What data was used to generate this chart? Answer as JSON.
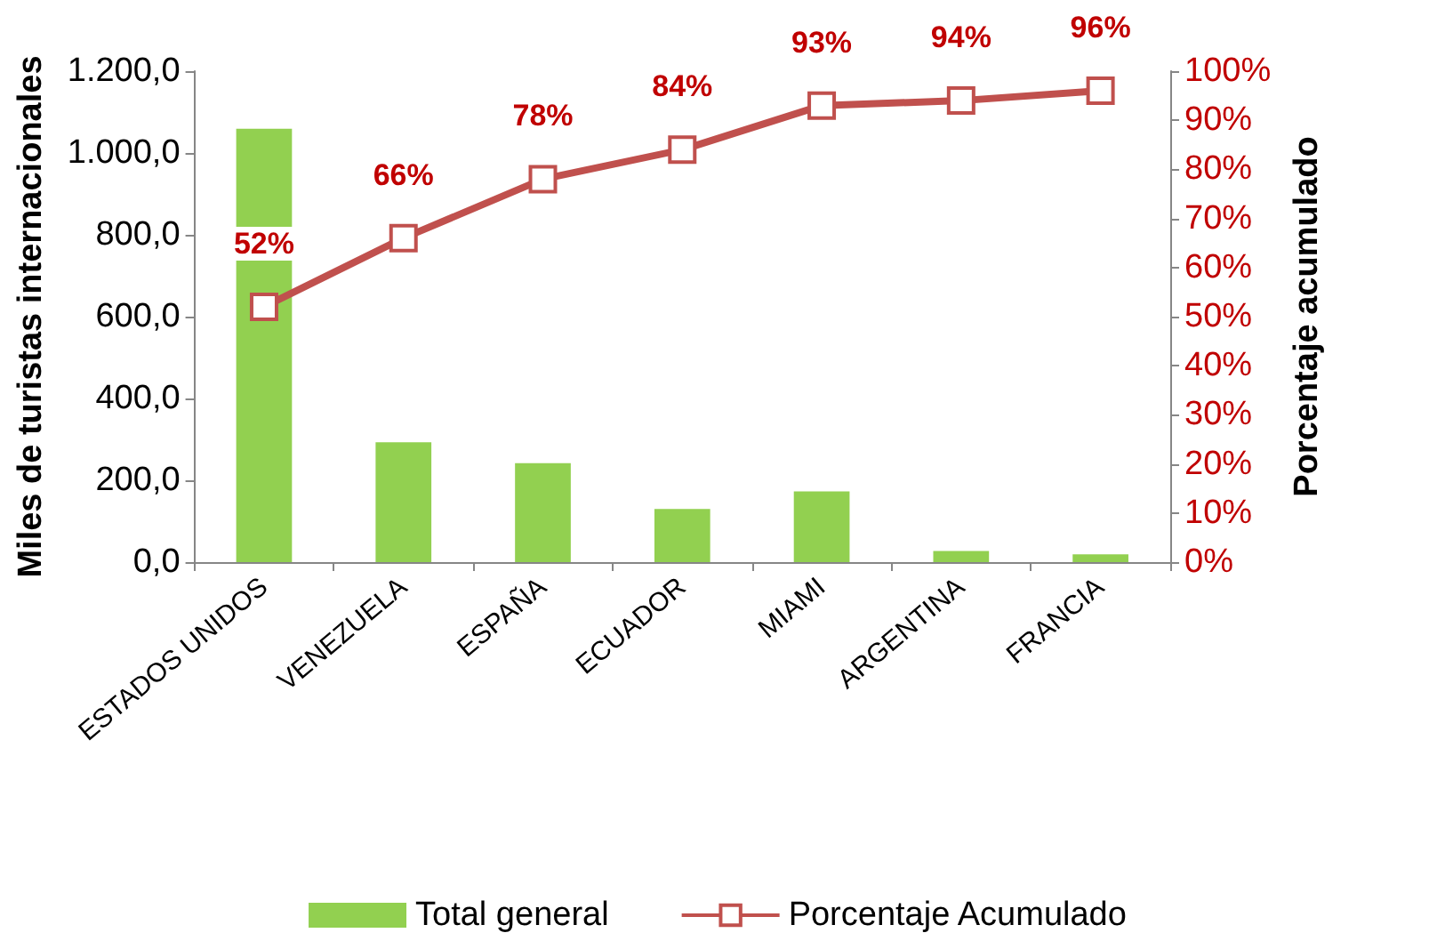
{
  "chart_data": {
    "type": "bar",
    "categories": [
      "ESTADOS UNIDOS",
      "VENEZUELA",
      "ESPAÑA",
      "ECUADOR",
      "MIAMI",
      "ARGENTINA",
      "FRANCIA"
    ],
    "series": [
      {
        "name": "Total general",
        "color": "#92d050",
        "values": [
          1059,
          293,
          242,
          130,
          173,
          27,
          19
        ]
      },
      {
        "name": "Porcentaje Acumulado",
        "type": "line",
        "axis": "y2",
        "color": "#c0504d",
        "marker": "square",
        "line_style": "solid",
        "values": [
          52,
          66,
          78,
          84,
          93,
          94,
          96
        ],
        "value_labels": [
          "52%",
          "66%",
          "78%",
          "84%",
          "93%",
          "94%",
          "96%"
        ]
      }
    ],
    "ylabel": "Miles de turistas internacionales",
    "y2label": "Porcentaje acumulado",
    "ylim": [
      0,
      1200
    ],
    "yticks": [
      {
        "value": 0,
        "label": "0,0"
      },
      {
        "value": 200,
        "label": "200,0"
      },
      {
        "value": 400,
        "label": "400,0"
      },
      {
        "value": 600,
        "label": "600,0"
      },
      {
        "value": 800,
        "label": "800,0"
      },
      {
        "value": 1000,
        "label": "1.000,0"
      },
      {
        "value": 1200,
        "label": "1.200,0"
      }
    ],
    "y2lim": [
      0,
      100
    ],
    "y2ticks": [
      {
        "value": 0,
        "label": "0%"
      },
      {
        "value": 10,
        "label": "10%"
      },
      {
        "value": 20,
        "label": "20%"
      },
      {
        "value": 30,
        "label": "30%"
      },
      {
        "value": 40,
        "label": "40%"
      },
      {
        "value": 50,
        "label": "50%"
      },
      {
        "value": 60,
        "label": "60%"
      },
      {
        "value": 70,
        "label": "70%"
      },
      {
        "value": 80,
        "label": "80%"
      },
      {
        "value": 90,
        "label": "90%"
      },
      {
        "value": 100,
        "label": "100%"
      }
    ],
    "grid": false,
    "legend": "bottom"
  }
}
